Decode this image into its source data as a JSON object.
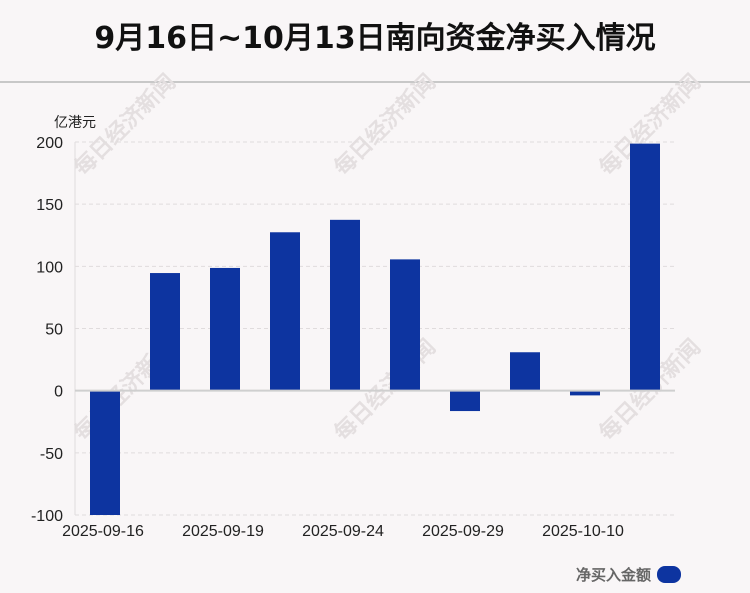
{
  "title": "9月16日~10月13日南向资金净买入情况",
  "watermark": "每日经济新闻",
  "chart_data": {
    "type": "bar",
    "title": "9月16日~10月13日南向资金净买入情况",
    "ylabel": "亿港元",
    "xlabel": "",
    "ylim": [
      -100,
      200
    ],
    "yticks": [
      200,
      150,
      100,
      50,
      0,
      -50,
      -100
    ],
    "x_tick_labels": [
      "2025-09-16",
      "",
      "2025-09-19",
      "",
      "2025-09-24",
      "",
      "2025-09-29",
      "",
      "2025-10-10",
      ""
    ],
    "series": [
      {
        "name": "净买入金额",
        "color": "#0d34a0",
        "values": [
          -100,
          94.6,
          98.7,
          127.4,
          137.4,
          105.6,
          -16.4,
          30.9,
          -3.8,
          198.7
        ]
      }
    ],
    "grid": true,
    "legend": "bottom-right"
  }
}
